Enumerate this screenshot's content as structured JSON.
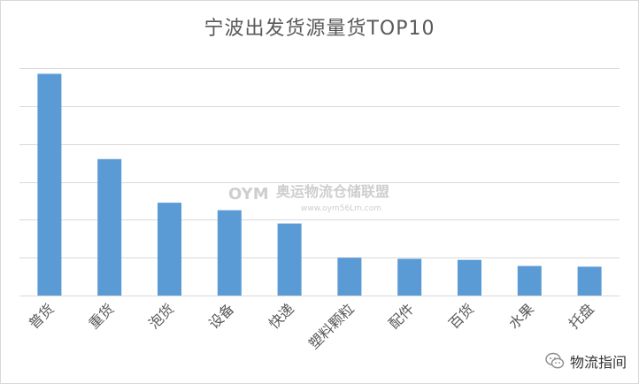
{
  "chart_data": {
    "type": "bar",
    "title": "宁波出发货源量货TOP10",
    "categories": [
      "普货",
      "重货",
      "泡货",
      "设备",
      "快递",
      "塑料颗粒",
      "配件",
      "百货",
      "水果",
      "托盘"
    ],
    "values": [
      5.85,
      3.6,
      2.45,
      2.25,
      1.9,
      1.0,
      0.97,
      0.94,
      0.78,
      0.76
    ],
    "ylim": [
      0,
      6
    ],
    "ytick_step": 1,
    "grid": true,
    "bar_color": "#5b9bd5",
    "grid_color": "#d9d9d9",
    "xlabel": "",
    "ylabel": ""
  },
  "watermark": {
    "logo": "OYM",
    "name": "奥运物流仓储联盟",
    "url": "www.oym56Lm.com"
  },
  "footer": {
    "icon": "wechat-icon",
    "label": "物流指间"
  }
}
